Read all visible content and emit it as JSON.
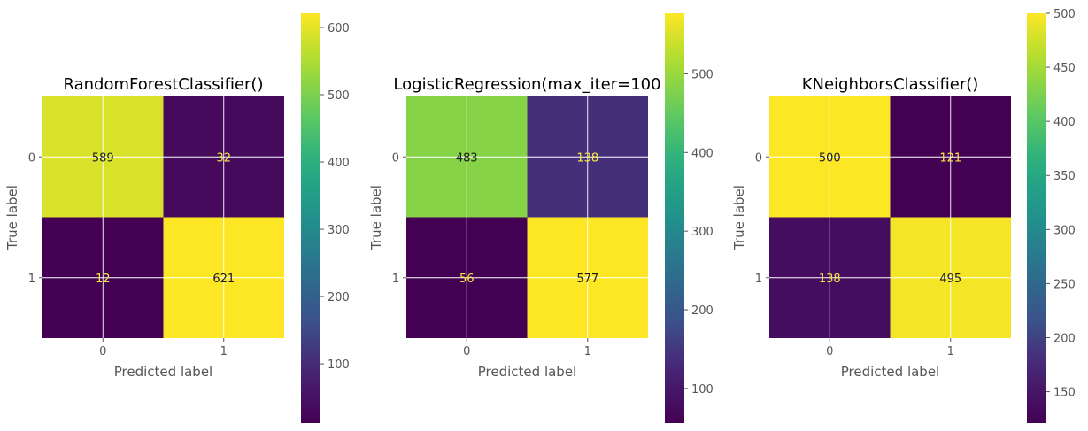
{
  "chart_data": [
    {
      "type": "heatmap",
      "title": "RandomForestClassifier()",
      "xlabel": "Predicted label",
      "ylabel": "True label",
      "x_ticks": [
        "0",
        "1"
      ],
      "y_ticks": [
        "0",
        "1"
      ],
      "matrix": [
        [
          589,
          32
        ],
        [
          12,
          621
        ]
      ],
      "colorbar": {
        "min": 12,
        "max": 621,
        "ticks": [
          100,
          200,
          300,
          400,
          500,
          600
        ]
      }
    },
    {
      "type": "heatmap",
      "title": "LogisticRegression(max_iter=100",
      "xlabel": "Predicted label",
      "ylabel": "True label",
      "x_ticks": [
        "0",
        "1"
      ],
      "y_ticks": [
        "0",
        "1"
      ],
      "matrix": [
        [
          483,
          138
        ],
        [
          56,
          577
        ]
      ],
      "colorbar": {
        "min": 56,
        "max": 577,
        "ticks": [
          100,
          200,
          300,
          400,
          500
        ]
      }
    },
    {
      "type": "heatmap",
      "title": "KNeighborsClassifier()",
      "xlabel": "Predicted label",
      "ylabel": "True label",
      "x_ticks": [
        "0",
        "1"
      ],
      "y_ticks": [
        "0",
        "1"
      ],
      "matrix": [
        [
          500,
          121
        ],
        [
          138,
          495
        ]
      ],
      "colorbar": {
        "min": 121,
        "max": 500,
        "ticks": [
          150,
          200,
          250,
          300,
          350,
          400,
          450,
          500
        ]
      }
    }
  ],
  "colormap": "viridis",
  "text_colors": {
    "dark": "#1a1a1a",
    "light": "#f5e642"
  }
}
